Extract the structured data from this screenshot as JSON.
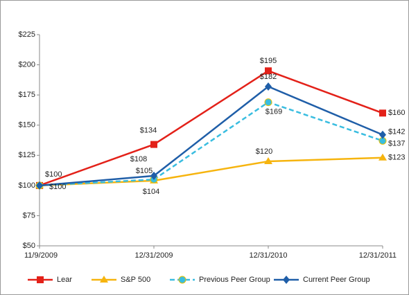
{
  "chart_data": {
    "type": "line",
    "categories": [
      "11/9/2009",
      "12/31/2009",
      "12/31/2010",
      "12/31/2011"
    ],
    "series": [
      {
        "name": "Lear",
        "color": "#e32119",
        "marker": "square",
        "values": [
          100,
          134,
          195,
          160
        ],
        "value_labels": [
          "$100",
          "$134",
          "$195",
          "$160"
        ]
      },
      {
        "name": "S&P 500",
        "color": "#f6b40e",
        "marker": "triangle",
        "values": [
          100,
          104,
          120,
          123
        ],
        "value_labels": [
          "$100",
          "$104",
          "$120",
          "$123"
        ]
      },
      {
        "name": "Previous Peer Group",
        "color": "#39bde0",
        "marker": "circle",
        "dashed": true,
        "values": [
          100,
          105,
          169,
          137
        ],
        "value_labels": [
          null,
          "$105",
          "$169",
          "$137"
        ]
      },
      {
        "name": "Current Peer Group",
        "color": "#1f5ea8",
        "marker": "diamond",
        "values": [
          100,
          108,
          182,
          142
        ],
        "value_labels": [
          null,
          "$108",
          "$182",
          "$142"
        ]
      }
    ],
    "ylim": [
      50,
      225
    ],
    "yticks": [
      {
        "value": 50,
        "label": "$50"
      },
      {
        "value": 75,
        "label": "$75"
      },
      {
        "value": 100,
        "label": "$100"
      },
      {
        "value": 125,
        "label": "$125"
      },
      {
        "value": 150,
        "label": "$150"
      },
      {
        "value": 175,
        "label": "$175"
      },
      {
        "value": 200,
        "label": "$200"
      },
      {
        "value": 225,
        "label": "$225"
      }
    ],
    "grid": false,
    "legend": "bottom"
  }
}
